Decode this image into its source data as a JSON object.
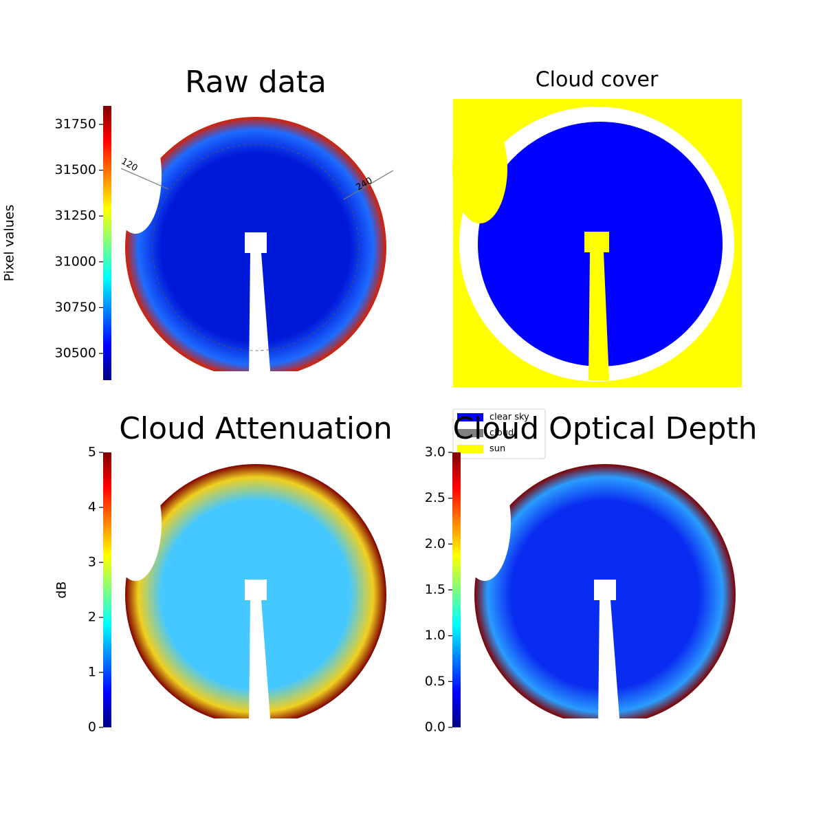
{
  "chart_data": [
    {
      "type": "image",
      "title": "Raw data",
      "colorbar_label": "Pixel values",
      "colormap": "jet",
      "ylim": [
        30354,
        31851
      ],
      "yticks": [
        30500,
        30750,
        31000,
        31250,
        31500,
        31750
      ],
      "annotations": [
        "120",
        "240"
      ]
    },
    {
      "type": "image",
      "title": "Cloud cover",
      "legend": [
        {
          "name": "clear sky",
          "color": "#0000ff"
        },
        {
          "name": "cloud",
          "color": "#808080"
        },
        {
          "name": "sun",
          "color": "#ffff00"
        }
      ]
    },
    {
      "type": "image",
      "title": "Cloud Attenuation",
      "colorbar_label": "dB",
      "colormap": "jet",
      "ylim": [
        0,
        5
      ],
      "yticks": [
        0,
        1,
        2,
        3,
        4,
        5
      ]
    },
    {
      "type": "image",
      "title": "Cloud Optical Depth",
      "colormap": "jet",
      "ylim": [
        0,
        3
      ],
      "yticks": [
        {
          "value": 0,
          "label": "0.0"
        },
        0.5,
        {
          "value": 1,
          "label": "1.0"
        },
        1.5,
        {
          "value": 2,
          "label": "2.0"
        },
        2.5,
        {
          "value": 3,
          "label": "3.0"
        }
      ]
    }
  ]
}
